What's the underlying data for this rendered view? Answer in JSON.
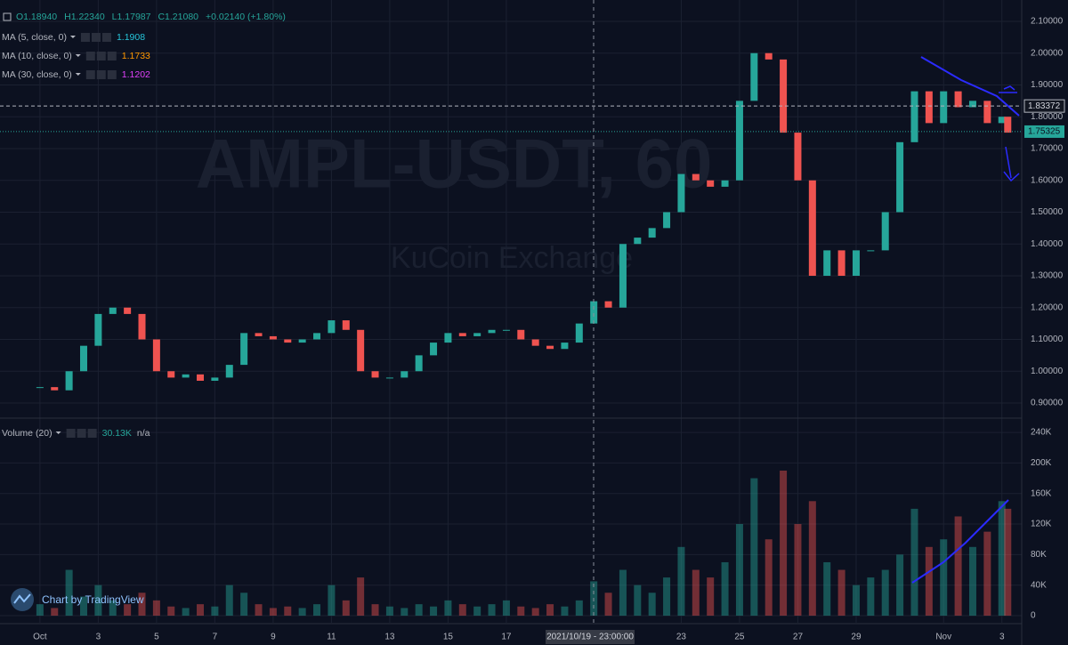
{
  "chart_data": {
    "type": "candlestick",
    "header": {
      "ohlc": [
        "O1.18940",
        "H1.22340",
        "L1.17987",
        "C1.21080"
      ],
      "change": "+0.02140 (+1.80%)"
    },
    "indicators": [
      {
        "name": "MA (5, close, 0)",
        "value": "1.1908",
        "color": "#26c6da"
      },
      {
        "name": "MA (10, close, 0)",
        "value": "1.1733",
        "color": "#ff9800"
      },
      {
        "name": "MA (30, close, 0)",
        "value": "1.1202",
        "color": "#e040fb"
      }
    ],
    "volume_legend": {
      "name": "Volume (20)",
      "value": "30.13K",
      "extra": "n/a"
    },
    "watermark": {
      "symbol": "AMPL-USDT, 60",
      "exchange": "KuCoin Exchange"
    },
    "attribution": "Chart by TradingView",
    "crosshair_label": "2021/10/19 - 23:00:00",
    "up_color": "#26a69a",
    "down_color": "#ef5350",
    "x": [
      1,
      1.5,
      2,
      2.5,
      3,
      3.5,
      4,
      4.5,
      5,
      5.5,
      6,
      6.5,
      7,
      7.5,
      8,
      8.5,
      9,
      9.5,
      10,
      10.5,
      11,
      11.5,
      12,
      12.5,
      13,
      13.5,
      14,
      14.5,
      15,
      15.5,
      16,
      16.5,
      17,
      17.5,
      18,
      18.5,
      19,
      19.5,
      20,
      20.5,
      21,
      21.5,
      22,
      22.5,
      23,
      23.5,
      24,
      24.5,
      25,
      25.5,
      26,
      26.5,
      27,
      27.5,
      28,
      28.5,
      29,
      29.5,
      30,
      30.5,
      31,
      31.5,
      32,
      32.5,
      33,
      33.5,
      34,
      34.2
    ],
    "values": [
      0.95,
      0.94,
      1.0,
      1.08,
      1.18,
      1.2,
      1.18,
      1.1,
      1.0,
      0.98,
      0.99,
      0.97,
      0.98,
      1.02,
      1.12,
      1.11,
      1.1,
      1.09,
      1.1,
      1.12,
      1.16,
      1.13,
      1.0,
      0.98,
      0.98,
      1.0,
      1.05,
      1.09,
      1.12,
      1.11,
      1.12,
      1.13,
      1.13,
      1.1,
      1.08,
      1.07,
      1.09,
      1.15,
      1.22,
      1.2,
      1.4,
      1.42,
      1.45,
      1.5,
      1.62,
      1.6,
      1.58,
      1.6,
      1.85,
      2.0,
      1.98,
      1.75,
      1.6,
      1.3,
      1.38,
      1.3,
      1.38,
      1.38,
      1.5,
      1.72,
      1.88,
      1.78,
      1.88,
      1.83,
      1.85,
      1.78,
      1.8,
      1.75
    ],
    "volume": [
      15000,
      10000,
      60000,
      25000,
      40000,
      20000,
      15000,
      30000,
      20000,
      12000,
      10000,
      15000,
      12000,
      40000,
      30000,
      15000,
      10000,
      12000,
      10000,
      15000,
      40000,
      20000,
      50000,
      15000,
      12000,
      10000,
      15000,
      12000,
      20000,
      15000,
      12000,
      15000,
      20000,
      12000,
      10000,
      15000,
      12000,
      20000,
      45000,
      30000,
      60000,
      40000,
      30000,
      50000,
      90000,
      60000,
      50000,
      70000,
      120000,
      180000,
      100000,
      190000,
      120000,
      150000,
      70000,
      60000,
      40000,
      50000,
      60000,
      80000,
      140000,
      90000,
      100000,
      130000,
      90000,
      110000,
      150000,
      140000
    ],
    "price_lines": [
      1.83372,
      1.75325
    ],
    "xlim": [
      -0.37,
      34.68
    ],
    "xticks": [
      {
        "value": 1,
        "label": "Oct"
      },
      3,
      5,
      7,
      9,
      11,
      13,
      15,
      17,
      23,
      25,
      27,
      29,
      {
        "value": 32,
        "label": "Nov"
      },
      {
        "value": 34,
        "label": "3"
      }
    ],
    "ylim": [
      0.8525,
      2.167
    ],
    "yticks": [
      {
        "value": 0.9,
        "label": "0.90000"
      },
      {
        "value": 1.0,
        "label": "1.00000"
      },
      {
        "value": 1.1,
        "label": "1.10000"
      },
      {
        "value": 1.2,
        "label": "1.20000"
      },
      {
        "value": 1.3,
        "label": "1.30000"
      },
      {
        "value": 1.4,
        "label": "1.40000"
      },
      {
        "value": 1.5,
        "label": "1.50000"
      },
      {
        "value": 1.6,
        "label": "1.60000"
      },
      {
        "value": 1.7,
        "label": "1.70000"
      },
      {
        "value": 1.8,
        "label": "1.80000"
      },
      {
        "value": 1.9,
        "label": "1.90000"
      },
      {
        "value": 2.0,
        "label": "2.00000"
      },
      {
        "value": 2.1,
        "label": "2.10000"
      }
    ],
    "vlim": [
      -9300,
      256400
    ],
    "vticks": [
      0,
      {
        "value": 40000,
        "label": "40K"
      },
      {
        "value": 80000,
        "label": "80K"
      },
      {
        "value": 120000,
        "label": "120K"
      },
      {
        "value": 160000,
        "label": "160K"
      },
      {
        "value": 200000,
        "label": "200K"
      },
      {
        "value": 240000,
        "label": "240K"
      }
    ],
    "grid": true
  }
}
